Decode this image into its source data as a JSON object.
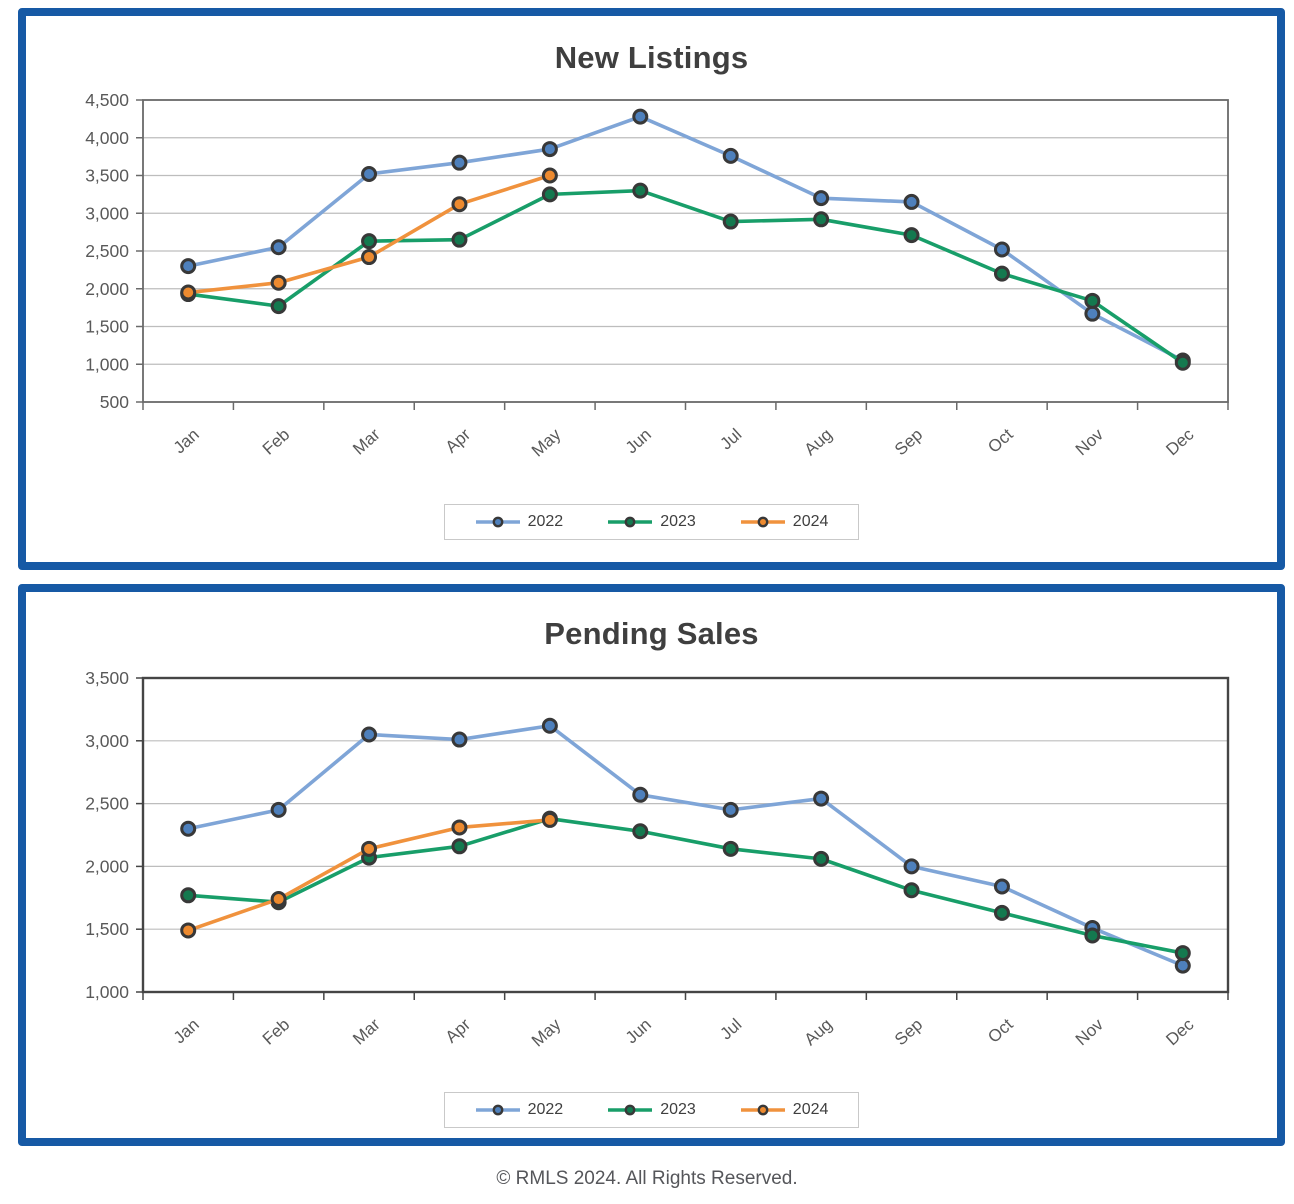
{
  "footer": {
    "text": "© RMLS 2024. All Rights Reserved."
  },
  "colors": {
    "card_border": "#1659A5",
    "title_text": "#3F3F3F",
    "axis_text": "#595959",
    "gridline": "#BDBDBD",
    "marker_ring": "#383838"
  },
  "chart_data": [
    {
      "type": "line",
      "title": "New Listings",
      "categories": [
        "Jan",
        "Feb",
        "Mar",
        "Apr",
        "May",
        "Jun",
        "Jul",
        "Aug",
        "Sep",
        "Oct",
        "Nov",
        "Dec"
      ],
      "series": [
        {
          "name": "2022",
          "line_color": "#7FA5D7",
          "marker_color": "#4E80BC",
          "values": [
            2300,
            2550,
            3520,
            3670,
            3850,
            4280,
            3760,
            3200,
            3150,
            2520,
            1670,
            1050
          ]
        },
        {
          "name": "2023",
          "line_color": "#189E69",
          "marker_color": "#14794F",
          "values": [
            1930,
            1770,
            2630,
            2650,
            3250,
            3300,
            2890,
            2920,
            2710,
            2200,
            1840,
            1020
          ]
        },
        {
          "name": "2024",
          "line_color": "#F0923D",
          "marker_color": "#ED8A2F",
          "values": [
            1950,
            2080,
            2420,
            3120,
            3500,
            null,
            null,
            null,
            null,
            null,
            null,
            null
          ]
        }
      ],
      "xlabel": "",
      "ylabel": "",
      "ylim": [
        500,
        4500
      ],
      "ytick_step": 500,
      "grid": true,
      "legend_position": "bottom"
    },
    {
      "type": "line",
      "title": "Pending Sales",
      "categories": [
        "Jan",
        "Feb",
        "Mar",
        "Apr",
        "May",
        "Jun",
        "Jul",
        "Aug",
        "Sep",
        "Oct",
        "Nov",
        "Dec"
      ],
      "series": [
        {
          "name": "2022",
          "line_color": "#7FA5D7",
          "marker_color": "#4E80BC",
          "values": [
            2300,
            2450,
            3050,
            3010,
            3120,
            2570,
            2450,
            2540,
            2000,
            1840,
            1510,
            1210
          ]
        },
        {
          "name": "2023",
          "line_color": "#189E69",
          "marker_color": "#14794F",
          "values": [
            1770,
            1715,
            2070,
            2160,
            2380,
            2280,
            2140,
            2060,
            1810,
            1630,
            1450,
            1310
          ]
        },
        {
          "name": "2024",
          "line_color": "#F0923D",
          "marker_color": "#ED8A2F",
          "values": [
            1490,
            1740,
            2140,
            2310,
            2370,
            null,
            null,
            null,
            null,
            null,
            null,
            null
          ]
        }
      ],
      "xlabel": "",
      "ylabel": "",
      "ylim": [
        1000,
        3500
      ],
      "ytick_step": 500,
      "grid": true,
      "legend_position": "bottom"
    }
  ]
}
